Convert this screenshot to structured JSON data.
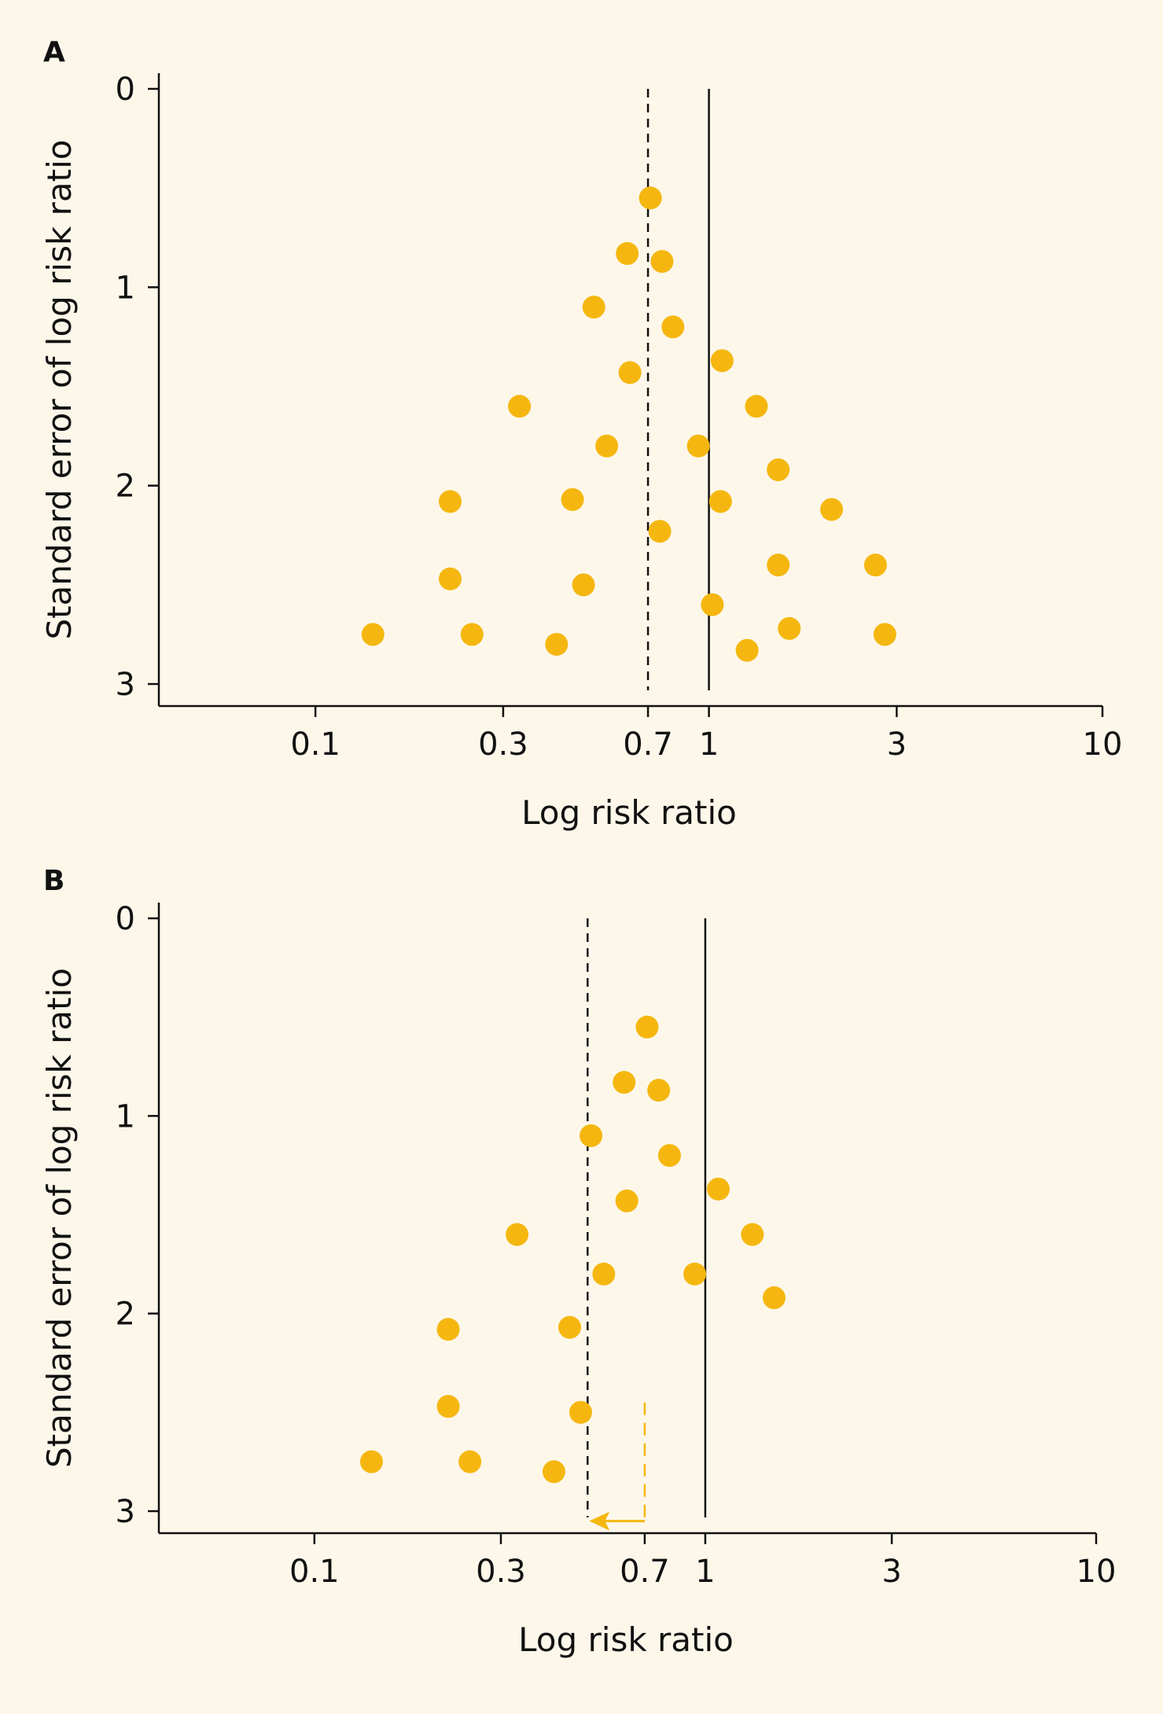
{
  "colors": {
    "background": "#fdf7ea",
    "point": "#f5b70f",
    "axis": "#111111",
    "arrow": "#f5b70f"
  },
  "chart_data": [
    {
      "panel_label": "A",
      "type": "scatter",
      "title": "",
      "xlabel": "Log risk ratio",
      "ylabel": "Standard error of log risk ratio",
      "x_scale": "log",
      "xlim": [
        0.04,
        10
      ],
      "ylim": [
        3.1,
        -0.1
      ],
      "y_inverted": true,
      "x_ticks": [
        0.1,
        0.3,
        0.7,
        1,
        3,
        10
      ],
      "x_tick_labels": [
        "0.1",
        "0.3",
        "0.7",
        "1",
        "3",
        "10"
      ],
      "y_ticks": [
        0,
        1,
        2,
        3
      ],
      "y_tick_labels": [
        "0",
        "1",
        "2",
        "3"
      ],
      "reference_lines": [
        {
          "x": 0.7,
          "style": "dashed",
          "meaning": "pooled estimate"
        },
        {
          "x": 1,
          "style": "solid",
          "meaning": "null effect"
        }
      ],
      "points": [
        {
          "x": 0.71,
          "y": 0.55
        },
        {
          "x": 0.62,
          "y": 0.83
        },
        {
          "x": 0.76,
          "y": 0.87
        },
        {
          "x": 0.51,
          "y": 1.1
        },
        {
          "x": 0.81,
          "y": 1.2
        },
        {
          "x": 1.08,
          "y": 1.37
        },
        {
          "x": 0.63,
          "y": 1.43
        },
        {
          "x": 0.33,
          "y": 1.6
        },
        {
          "x": 1.32,
          "y": 1.6
        },
        {
          "x": 0.55,
          "y": 1.8
        },
        {
          "x": 0.94,
          "y": 1.8
        },
        {
          "x": 1.5,
          "y": 1.92
        },
        {
          "x": 0.22,
          "y": 2.08
        },
        {
          "x": 0.45,
          "y": 2.07
        },
        {
          "x": 1.07,
          "y": 2.08
        },
        {
          "x": 2.05,
          "y": 2.12
        },
        {
          "x": 0.75,
          "y": 2.23
        },
        {
          "x": 0.22,
          "y": 2.47
        },
        {
          "x": 0.48,
          "y": 2.5
        },
        {
          "x": 1.5,
          "y": 2.4
        },
        {
          "x": 2.65,
          "y": 2.4
        },
        {
          "x": 1.02,
          "y": 2.6
        },
        {
          "x": 0.14,
          "y": 2.75
        },
        {
          "x": 0.25,
          "y": 2.75
        },
        {
          "x": 0.41,
          "y": 2.8
        },
        {
          "x": 1.25,
          "y": 2.83
        },
        {
          "x": 1.6,
          "y": 2.72
        },
        {
          "x": 2.8,
          "y": 2.75
        }
      ]
    },
    {
      "panel_label": "B",
      "type": "scatter",
      "title": "",
      "xlabel": "Log risk ratio",
      "ylabel": "Standard error of log risk ratio",
      "x_scale": "log",
      "xlim": [
        0.04,
        10
      ],
      "ylim": [
        3.1,
        -0.1
      ],
      "y_inverted": true,
      "x_ticks": [
        0.1,
        0.3,
        0.7,
        1,
        3,
        10
      ],
      "x_tick_labels": [
        "0.1",
        "0.3",
        "0.7",
        "1",
        "3",
        "10"
      ],
      "y_ticks": [
        0,
        1,
        2,
        3
      ],
      "y_tick_labels": [
        "0",
        "1",
        "2",
        "3"
      ],
      "reference_lines": [
        {
          "x": 0.5,
          "style": "dashed",
          "meaning": "adjusted pooled estimate"
        },
        {
          "x": 1,
          "style": "solid",
          "meaning": "null effect"
        }
      ],
      "shift_arrow": {
        "from_x": 0.7,
        "to_x": 0.5,
        "y_top": 2.45,
        "y_bottom": 3.05
      },
      "points": [
        {
          "x": 0.71,
          "y": 0.55
        },
        {
          "x": 0.62,
          "y": 0.83
        },
        {
          "x": 0.76,
          "y": 0.87
        },
        {
          "x": 0.51,
          "y": 1.1
        },
        {
          "x": 0.81,
          "y": 1.2
        },
        {
          "x": 1.08,
          "y": 1.37
        },
        {
          "x": 0.63,
          "y": 1.43
        },
        {
          "x": 0.33,
          "y": 1.6
        },
        {
          "x": 1.32,
          "y": 1.6
        },
        {
          "x": 0.55,
          "y": 1.8
        },
        {
          "x": 0.94,
          "y": 1.8
        },
        {
          "x": 1.5,
          "y": 1.92
        },
        {
          "x": 0.22,
          "y": 2.08
        },
        {
          "x": 0.45,
          "y": 2.07
        },
        {
          "x": 0.22,
          "y": 2.47
        },
        {
          "x": 0.48,
          "y": 2.5
        },
        {
          "x": 0.14,
          "y": 2.75
        },
        {
          "x": 0.25,
          "y": 2.75
        },
        {
          "x": 0.41,
          "y": 2.8
        }
      ]
    }
  ]
}
